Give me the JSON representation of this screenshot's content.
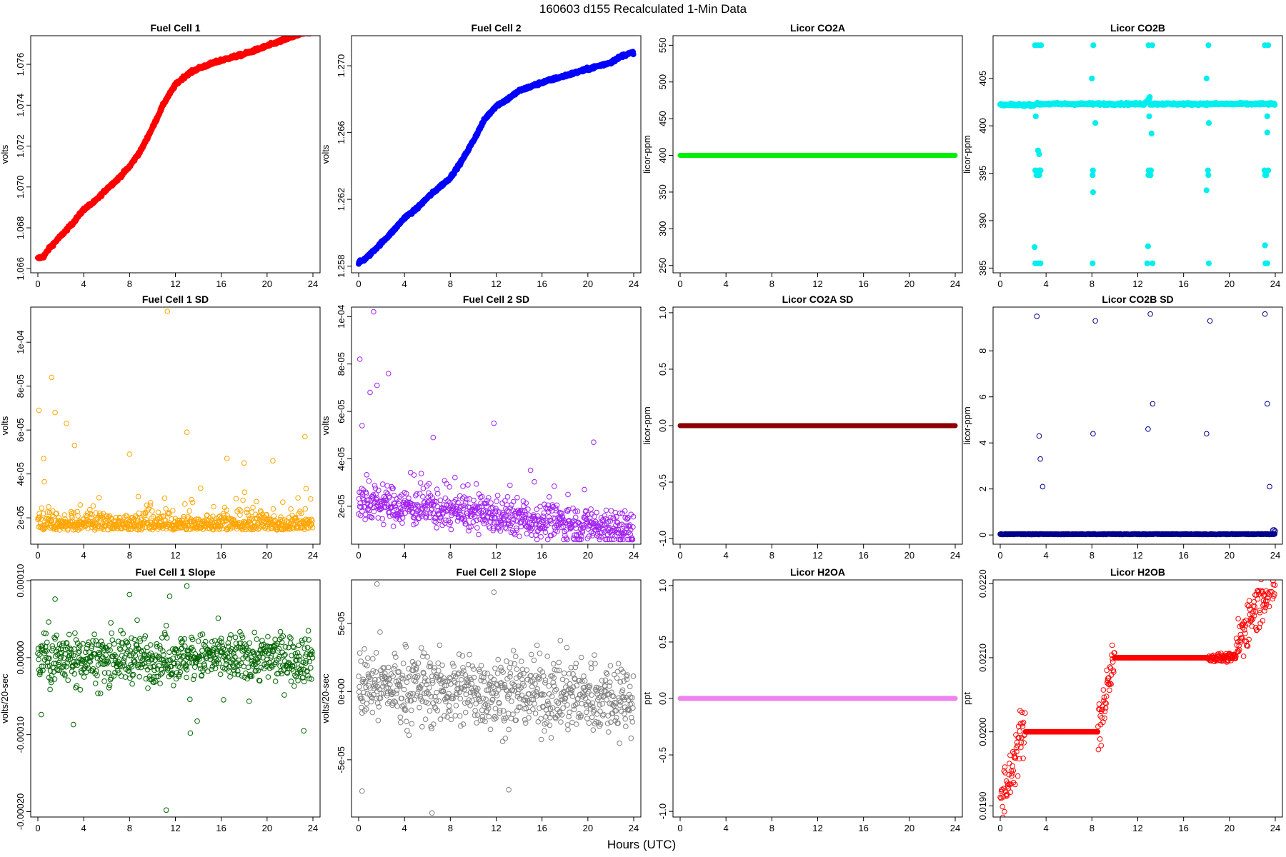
{
  "figure": {
    "title": "160603   d155   Recalculated 1-Min Data",
    "xlabel": "Hours (UTC)"
  },
  "chart_data": [
    {
      "type": "scatter",
      "title": "Fuel Cell 1",
      "ylabel": "volts",
      "color": "#ff0000",
      "marker": "filled-dense",
      "xlim": [
        0,
        24
      ],
      "xticks": [
        "0",
        "4",
        "8",
        "12",
        "16",
        "20",
        "24"
      ],
      "ylim": [
        1.0658,
        1.0774
      ],
      "yticks": [
        {
          "v": 1.066,
          "label": "1.066"
        },
        {
          "v": 1.068,
          "label": "1.068"
        },
        {
          "v": 1.07,
          "label": "1.070"
        },
        {
          "v": 1.072,
          "label": "1.072"
        },
        {
          "v": 1.074,
          "label": "1.074"
        },
        {
          "v": 1.076,
          "label": "1.076"
        }
      ],
      "series": [
        {
          "x": [
            0,
            0.5,
            1,
            2,
            3,
            4,
            5,
            6,
            7,
            8,
            9,
            10,
            11,
            12,
            13,
            14,
            16,
            18,
            20,
            22,
            23,
            24
          ],
          "y": [
            1.0665,
            1.0666,
            1.067,
            1.0676,
            1.0682,
            1.0689,
            1.0693,
            1.0699,
            1.0704,
            1.071,
            1.0718,
            1.0729,
            1.0741,
            1.075,
            1.0755,
            1.0758,
            1.0762,
            1.0765,
            1.0769,
            1.0773,
            1.0775,
            1.0776
          ]
        }
      ]
    },
    {
      "type": "scatter",
      "title": "Fuel Cell 2",
      "ylabel": "volts",
      "color": "#0000ff",
      "marker": "filled-dense",
      "xlim": [
        0,
        24
      ],
      "xticks": [
        "0",
        "4",
        "8",
        "12",
        "16",
        "20",
        "24"
      ],
      "ylim": [
        1.2576,
        1.2718
      ],
      "yticks": [
        {
          "v": 1.258,
          "label": "1.258"
        },
        {
          "v": 1.262,
          "label": "1.262"
        },
        {
          "v": 1.266,
          "label": "1.266"
        },
        {
          "v": 1.27,
          "label": "1.270"
        }
      ],
      "series": [
        {
          "x": [
            0,
            0.5,
            1,
            2,
            3,
            4,
            5,
            6,
            7,
            8,
            9,
            10,
            11,
            12,
            13,
            14,
            16,
            18,
            20,
            22,
            23,
            24
          ],
          "y": [
            1.2582,
            1.2584,
            1.2587,
            1.2594,
            1.2601,
            1.2609,
            1.2614,
            1.2621,
            1.2627,
            1.2633,
            1.2643,
            1.2655,
            1.2668,
            1.2676,
            1.268,
            1.2685,
            1.269,
            1.2694,
            1.2698,
            1.2702,
            1.2706,
            1.2708
          ]
        }
      ]
    },
    {
      "type": "scatter",
      "title": "Licor CO2A",
      "ylabel": "licor-ppm",
      "color": "#00ee00",
      "marker": "filled-dense",
      "xlim": [
        0,
        24
      ],
      "xticks": [
        "0",
        "4",
        "8",
        "12",
        "16",
        "20",
        "24"
      ],
      "ylim": [
        240,
        563
      ],
      "yticks": [
        {
          "v": 250,
          "label": "250"
        },
        {
          "v": 300,
          "label": "300"
        },
        {
          "v": 350,
          "label": "350"
        },
        {
          "v": 400,
          "label": "400"
        },
        {
          "v": 450,
          "label": "450"
        },
        {
          "v": 500,
          "label": "500"
        },
        {
          "v": 550,
          "label": "550"
        }
      ],
      "series": [
        {
          "x": [
            0,
            24
          ],
          "y": [
            400,
            400
          ]
        }
      ]
    },
    {
      "type": "scatter",
      "title": "Licor CO2B",
      "ylabel": "licor-ppm",
      "color": "#00eeee",
      "marker": "filled-dense",
      "xlim": [
        0,
        24
      ],
      "xticks": [
        "0",
        "4",
        "8",
        "12",
        "16",
        "20",
        "24"
      ],
      "ylim": [
        384.5,
        409.5
      ],
      "yticks": [
        {
          "v": 385,
          "label": "385"
        },
        {
          "v": 390,
          "label": "390"
        },
        {
          "v": 395,
          "label": "395"
        },
        {
          "v": 400,
          "label": "400"
        },
        {
          "v": 405,
          "label": "405"
        }
      ],
      "series": [
        {
          "x": [
            0,
            3,
            3.2,
            3.4,
            3.6,
            4,
            8,
            8.2,
            12,
            12.5,
            12.9,
            13.2,
            16,
            18,
            20,
            22,
            23,
            23.5,
            24
          ],
          "y": [
            402.2,
            402.2,
            408.5,
            395.5,
            385.5,
            402.3,
            402.4,
            408.5,
            402.4,
            402.5,
            403.2,
            402.4,
            402.4,
            402.5,
            402.4,
            402.4,
            402.4,
            408.5,
            402.2
          ]
        }
      ]
    },
    {
      "type": "scatter",
      "title": "Fuel Cell 1 SD",
      "ylabel": "volts",
      "color": "#ffa500",
      "marker": "open",
      "xlim": [
        0,
        24
      ],
      "xticks": [
        "0",
        "4",
        "8",
        "12",
        "16",
        "20",
        "24"
      ],
      "ylim": [
        8e-06,
        0.000116
      ],
      "yticks": [
        {
          "v": 2e-05,
          "label": "2e-05"
        },
        {
          "v": 4e-05,
          "label": "4e-05"
        },
        {
          "v": 6e-05,
          "label": "6e-05"
        },
        {
          "v": 8e-05,
          "label": "8e-05"
        },
        {
          "v": 0.0001,
          "label": "1e-04"
        }
      ],
      "series": [
        {
          "x": [
            0.1,
            0.5,
            1.2,
            1.5,
            2.5,
            3.2,
            8,
            11.3,
            13,
            16.5,
            18,
            20.5,
            23.3
          ],
          "y": [
            6.9e-05,
            4.7e-05,
            8.4e-05,
            6.8e-05,
            6.3e-05,
            5.3e-05,
            4.9e-05,
            0.000114,
            5.9e-05,
            4.7e-05,
            4.5e-05,
            4.6e-05,
            5.7e-05
          ]
        }
      ]
    },
    {
      "type": "scatter",
      "title": "Fuel Cell 2 SD",
      "ylabel": "volts",
      "color": "#a020f0",
      "marker": "open",
      "xlim": [
        0,
        24
      ],
      "xticks": [
        "0",
        "4",
        "8",
        "12",
        "16",
        "20",
        "24"
      ],
      "ylim": [
        4e-06,
        0.000104
      ],
      "yticks": [
        {
          "v": 2e-05,
          "label": "2e-05"
        },
        {
          "v": 4e-05,
          "label": "4e-05"
        },
        {
          "v": 6e-05,
          "label": "6e-05"
        },
        {
          "v": 8e-05,
          "label": "8e-05"
        },
        {
          "v": 0.0001,
          "label": "1e-04"
        }
      ],
      "series": [
        {
          "x": [
            0.1,
            0.3,
            1,
            1.3,
            1.6,
            2.6,
            6.5,
            11.8,
            20.5
          ],
          "y": [
            8.2e-05,
            5.4e-05,
            6.8e-05,
            0.000102,
            7.1e-05,
            7.6e-05,
            4.9e-05,
            5.5e-05,
            4.7e-05
          ]
        }
      ]
    },
    {
      "type": "scatter",
      "title": "Licor CO2A SD",
      "ylabel": "licor-ppm",
      "color": "#8b0000",
      "marker": "filled-dense",
      "xlim": [
        0,
        24
      ],
      "xticks": [
        "0",
        "4",
        "8",
        "12",
        "16",
        "20",
        "24"
      ],
      "ylim": [
        -1.05,
        1.05
      ],
      "yticks": [
        {
          "v": -1,
          "label": "-1.0"
        },
        {
          "v": -0.5,
          "label": "-0.5"
        },
        {
          "v": 0,
          "label": "0.0"
        },
        {
          "v": 0.5,
          "label": "0.5"
        },
        {
          "v": 1,
          "label": "1.0"
        }
      ],
      "series": [
        {
          "x": [
            0,
            24
          ],
          "y": [
            0,
            0
          ]
        }
      ]
    },
    {
      "type": "scatter",
      "title": "Licor CO2B SD",
      "ylabel": "licor-ppm",
      "color": "#00008b",
      "marker": "open",
      "xlim": [
        0,
        24
      ],
      "xticks": [
        "0",
        "4",
        "8",
        "12",
        "16",
        "20",
        "24"
      ],
      "ylim": [
        -0.4,
        9.9
      ],
      "yticks": [
        {
          "v": 0,
          "label": "0"
        },
        {
          "v": 2,
          "label": "2"
        },
        {
          "v": 4,
          "label": "4"
        },
        {
          "v": 6,
          "label": "6"
        },
        {
          "v": 8,
          "label": "8"
        }
      ],
      "series": [
        {
          "x": [
            3.2,
            3.4,
            3.5,
            3.7,
            8.1,
            8.3,
            12.9,
            13.1,
            13.3,
            18,
            18.3,
            23.1,
            23.3,
            23.5
          ],
          "y": [
            9.5,
            4.3,
            3.3,
            2.1,
            4.4,
            9.3,
            4.6,
            9.6,
            5.7,
            4.4,
            9.3,
            9.6,
            5.7,
            2.1
          ]
        }
      ]
    },
    {
      "type": "scatter",
      "title": "Fuel Cell 1 Slope",
      "ylabel": "volts/20-sec",
      "color": "#006400",
      "marker": "open",
      "xlim": [
        0,
        24
      ],
      "xticks": [
        "0",
        "4",
        "8",
        "12",
        "16",
        "20",
        "24"
      ],
      "ylim": [
        -0.000207,
        0.000101
      ],
      "yticks": [
        {
          "v": -0.0002,
          "label": "-0.00020"
        },
        {
          "v": -0.0001,
          "label": "-0.00010"
        },
        {
          "v": 0,
          "label": "0.00000"
        },
        {
          "v": 0.0001,
          "label": "0.00010"
        }
      ],
      "series": [
        {
          "x": [
            0.3,
            1.5,
            3.1,
            8,
            11.2,
            13,
            13.3,
            23.2
          ],
          "y": [
            -7.4e-05,
            7.6e-05,
            -8.7e-05,
            8.2e-05,
            -0.000198,
            9.3e-05,
            -9.8e-05,
            -9.5e-05
          ]
        }
      ]
    },
    {
      "type": "scatter",
      "title": "Fuel Cell 2 Slope",
      "ylabel": "volts/20-sec",
      "color": "#808080",
      "marker": "open",
      "xlim": [
        0,
        24
      ],
      "xticks": [
        "0",
        "4",
        "8",
        "12",
        "16",
        "20",
        "24"
      ],
      "ylim": [
        -9.2e-05,
        8.2e-05
      ],
      "yticks": [
        {
          "v": -5e-05,
          "label": "-5e-05"
        },
        {
          "v": 0,
          "label": "0e+00"
        },
        {
          "v": 5e-05,
          "label": "5e-05"
        }
      ],
      "series": [
        {
          "x": [
            0.3,
            1.6,
            6.4,
            11.8,
            13.1
          ],
          "y": [
            -7.3e-05,
            7.9e-05,
            -8.9e-05,
            7.3e-05,
            -7.2e-05
          ]
        }
      ]
    },
    {
      "type": "scatter",
      "title": "Licor H2OA",
      "ylabel": "ppt",
      "color": "#ee82ee",
      "marker": "filled-dense",
      "xlim": [
        0,
        24
      ],
      "xticks": [
        "0",
        "4",
        "8",
        "12",
        "16",
        "20",
        "24"
      ],
      "ylim": [
        -1.05,
        1.05
      ],
      "yticks": [
        {
          "v": -1,
          "label": "-1.0"
        },
        {
          "v": -0.5,
          "label": "-0.5"
        },
        {
          "v": 0,
          "label": "0.0"
        },
        {
          "v": 0.5,
          "label": "0.5"
        },
        {
          "v": 1,
          "label": "1.0"
        }
      ],
      "series": [
        {
          "x": [
            0,
            24
          ],
          "y": [
            0,
            0
          ]
        }
      ]
    },
    {
      "type": "scatter",
      "title": "Licor H2OB",
      "ylabel": "ppt",
      "color": "#ff0000",
      "marker": "open",
      "xlim": [
        0,
        24
      ],
      "xticks": [
        "0",
        "4",
        "8",
        "12",
        "16",
        "20",
        "24"
      ],
      "ylim": [
        0.01885,
        0.02205
      ],
      "yticks": [
        {
          "v": 0.019,
          "label": "0.0190"
        },
        {
          "v": 0.02,
          "label": "0.0200"
        },
        {
          "v": 0.021,
          "label": "0.0210"
        },
        {
          "v": 0.022,
          "label": "0.0220"
        }
      ],
      "series": [
        {
          "x": [
            0,
            0.5,
            1,
            1.5,
            2,
            3,
            5,
            8.5,
            9,
            9.5,
            10,
            12,
            16,
            18,
            19,
            20.5,
            21,
            22,
            23,
            24
          ],
          "y": [
            0.019,
            0.0192,
            0.0195,
            0.0198,
            0.02,
            0.02,
            0.02,
            0.02,
            0.0203,
            0.0207,
            0.021,
            0.021,
            0.021,
            0.021,
            0.021,
            0.021,
            0.0213,
            0.0216,
            0.0219,
            0.022
          ]
        }
      ]
    }
  ]
}
